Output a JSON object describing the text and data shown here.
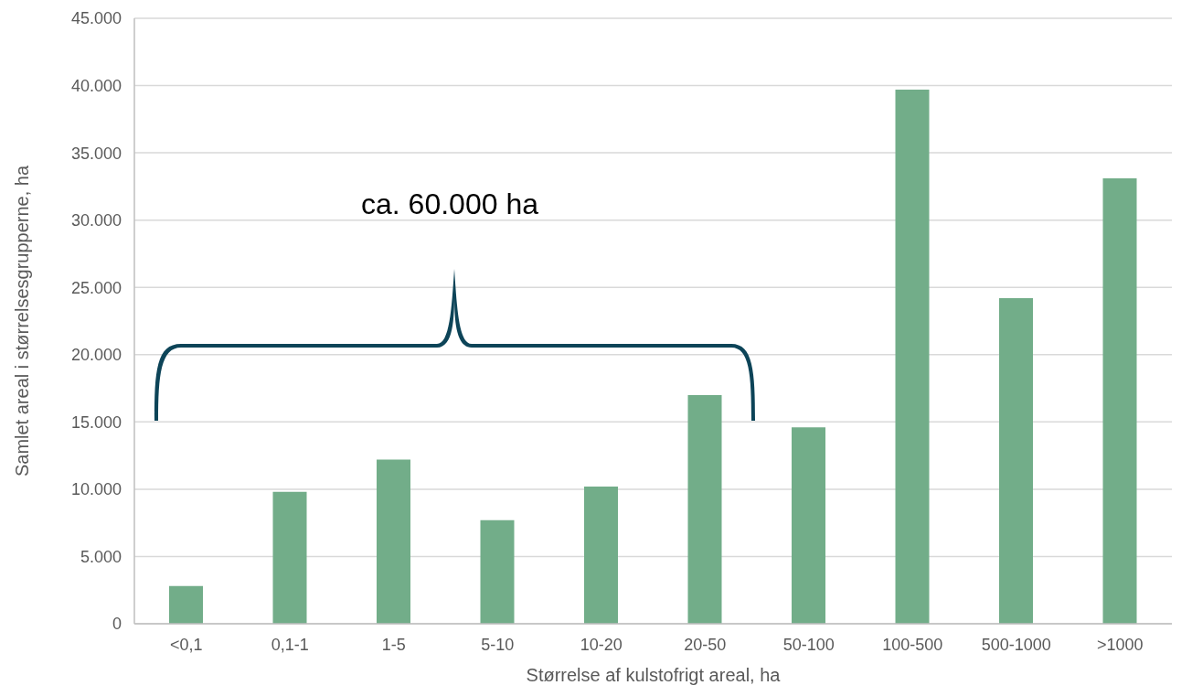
{
  "chart_data": {
    "type": "bar",
    "xlabel": "Størrelse af kulstofrigt areal, ha",
    "ylabel": "Samlet areal i størrelsesgrupperne, ha",
    "categories": [
      "<0,1",
      "0,1-1",
      "1-5",
      "5-10",
      "10-20",
      "20-50",
      "50-100",
      "100-500",
      "500-1000",
      ">1000"
    ],
    "values": [
      2800,
      9800,
      12200,
      7700,
      10200,
      17000,
      14600,
      39700,
      24200,
      33100
    ],
    "color": "#72ad89",
    "ylim": [
      0,
      45000
    ],
    "yticks": [
      0,
      {
        "value": 5000,
        "label": "5.000"
      },
      {
        "value": 10000,
        "label": "10.000"
      },
      {
        "value": 15000,
        "label": "15.000"
      },
      {
        "value": 20000,
        "label": "20.000"
      },
      {
        "value": 25000,
        "label": "25.000"
      },
      {
        "value": 30000,
        "label": "30.000"
      },
      {
        "value": 35000,
        "label": "35.000"
      },
      {
        "value": 40000,
        "label": "40.000"
      },
      {
        "value": 45000,
        "label": "45.000"
      }
    ],
    "grid": "y",
    "annotations": [
      "ca. 60.000 ha"
    ]
  }
}
